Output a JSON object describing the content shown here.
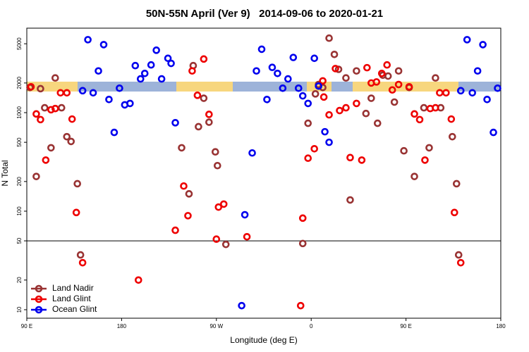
{
  "chart_data": {
    "type": "scatter",
    "scale": "log",
    "title": "50N-55N April (Ver 9)   2014-09-06 to 2020-01-21",
    "xlabel": "Longitude (deg E)",
    "ylabel": "N Total",
    "xlim": [
      90,
      540
    ],
    "ylim": [
      8.2,
      7200
    ],
    "xticks": [
      {
        "value": 90,
        "label": "90 E"
      },
      180,
      {
        "value": 270,
        "label": "90 W"
      },
      {
        "value": 360,
        "label": "0"
      },
      {
        "value": 450,
        "label": "90 E"
      },
      {
        "value": 540,
        "label": "180"
      }
    ],
    "yticks": [
      10,
      20,
      50,
      100,
      200,
      500,
      1000,
      2000,
      5000
    ],
    "hline": 50,
    "legend": "lower left",
    "series": [
      {
        "name": "Land Nadir",
        "color": "#993333",
        "x": [
          93,
          103,
          99,
          107,
          117,
          113,
          123,
          128,
          132,
          138,
          141,
          237,
          244,
          248,
          253,
          258,
          263,
          269,
          271,
          279,
          352,
          357,
          364,
          367,
          371,
          377,
          382,
          386,
          393,
          397,
          403,
          412,
          417,
          423,
          428,
          433,
          439,
          443,
          448,
          453,
          458,
          467,
          472,
          478,
          483,
          494,
          498,
          500
        ],
        "values": [
          1800,
          1750,
          225,
          1120,
          2250,
          440,
          1120,
          570,
          510,
          190,
          36,
          440,
          150,
          3000,
          720,
          1400,
          800,
          400,
          290,
          46,
          47,
          780,
          1550,
          1930,
          1800,
          5700,
          3900,
          2750,
          2250,
          130,
          2650,
          980,
          1400,
          780,
          2400,
          2350,
          1280,
          2650,
          410,
          1800,
          225,
          1120,
          440,
          2250,
          1120,
          570,
          190,
          36
        ]
      },
      {
        "name": "Land Glint",
        "color": "#ee0000",
        "x": [
          94,
          99,
          103,
          108,
          113,
          117,
          122,
          128,
          133,
          137,
          143,
          196,
          231,
          239,
          243,
          247,
          252,
          258,
          263,
          270,
          272,
          277,
          299,
          350,
          352,
          357,
          363,
          371,
          372,
          377,
          383,
          387,
          393,
          397,
          403,
          408,
          413,
          417,
          422,
          427,
          432,
          437,
          443,
          453,
          458,
          463,
          468,
          473,
          478,
          482,
          488,
          493,
          496,
          502
        ],
        "values": [
          1830,
          970,
          850,
          330,
          1070,
          1100,
          1590,
          1590,
          860,
          97,
          30,
          20,
          64,
          180,
          90,
          2650,
          1500,
          3500,
          960,
          52,
          110,
          118,
          55,
          11,
          85,
          345,
          430,
          2100,
          1440,
          950,
          2800,
          1050,
          1120,
          350,
          1240,
          330,
          2860,
          2000,
          2050,
          2500,
          3050,
          1700,
          1930,
          1830,
          970,
          850,
          330,
          1100,
          1120,
          1590,
          1590,
          860,
          97,
          30
        ]
      },
      {
        "name": "Ocean Glint",
        "color": "#0000ee",
        "x": [
          143,
          148,
          153,
          158,
          163,
          168,
          173,
          178,
          183,
          188,
          193,
          198,
          202,
          208,
          213,
          218,
          224,
          227,
          231,
          294,
          297,
          304,
          308,
          313,
          318,
          323,
          328,
          333,
          338,
          343,
          348,
          352,
          357,
          363,
          367,
          373,
          377,
          502,
          508,
          513,
          518,
          523,
          527,
          533,
          537
        ],
        "values": [
          1670,
          5500,
          1590,
          2650,
          4900,
          1360,
          630,
          1770,
          1200,
          1240,
          3000,
          2200,
          2500,
          3050,
          4300,
          2200,
          3560,
          3160,
          790,
          11,
          92,
          390,
          2650,
          4400,
          1360,
          2880,
          2500,
          1770,
          2200,
          3630,
          1770,
          1480,
          1240,
          3560,
          1860,
          640,
          500,
          1670,
          5500,
          1590,
          2650,
          4900,
          1360,
          630,
          1770
        ]
      }
    ]
  }
}
